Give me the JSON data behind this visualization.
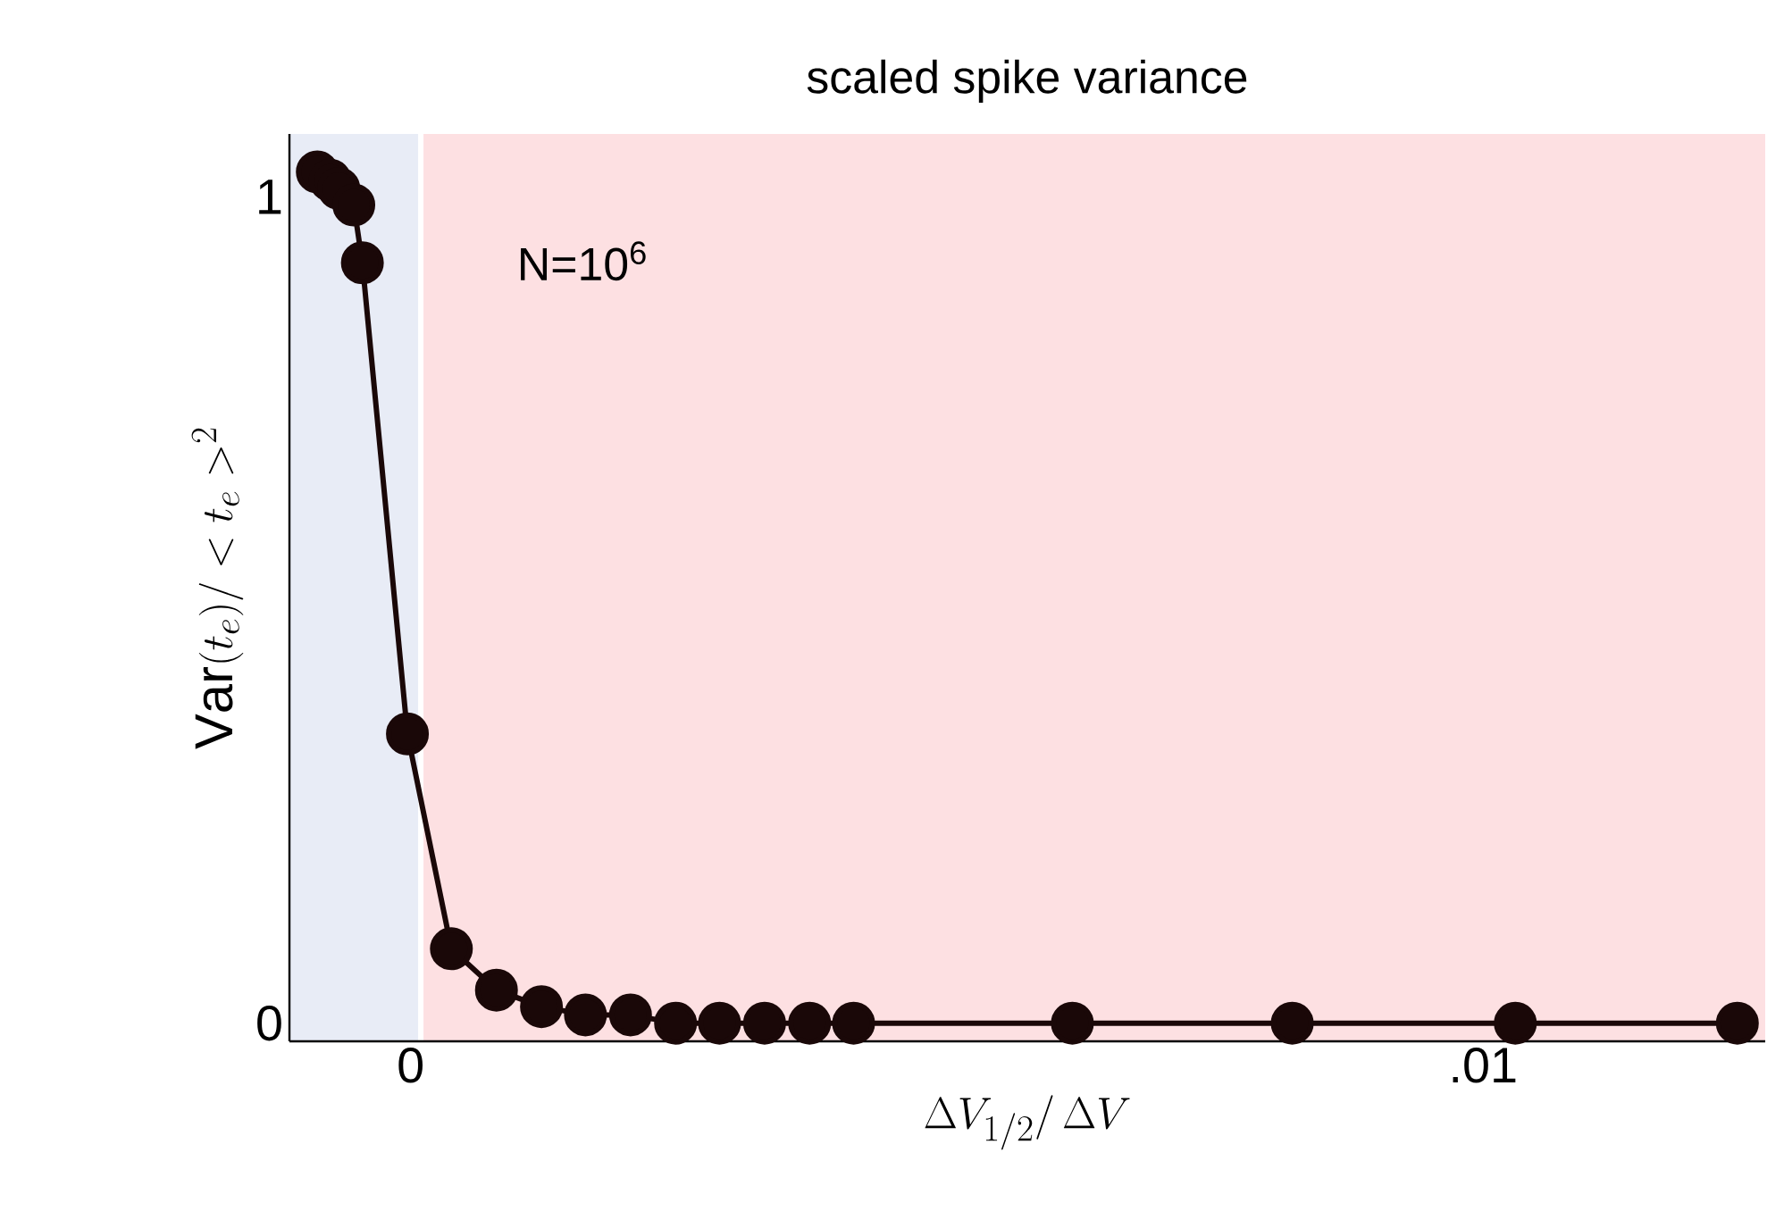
{
  "chart_data": {
    "type": "line",
    "title": "scaled spike variance",
    "xlabel": "\\Delta V_{1/2}/\\, \\Delta V",
    "ylabel": "\\mathrm{Var}(t_e)/ < t_e >^{2}",
    "annotations": [
      "N=10$^{6}$"
    ],
    "x": [
      -0.00087,
      -0.00075,
      -0.00067,
      -0.00053,
      -0.00045,
      -3e-05,
      0.00038,
      0.0008,
      0.00122,
      0.00163,
      0.00205,
      0.00247,
      0.00288,
      0.0033,
      0.00372,
      0.00413,
      0.00617,
      0.00822,
      0.0103,
      0.01237
    ],
    "values": [
      1.03,
      1.02,
      1.01,
      0.99,
      0.92,
      0.35,
      0.09,
      0.04,
      0.02,
      0.01,
      0.01,
      0.0,
      0.0,
      0.0,
      0.0,
      0.0,
      0.0,
      0.0,
      0.0,
      0.0
    ],
    "color": "#1a0808",
    "marker": "circle",
    "line_style": "solid",
    "xlim": [
      -0.00113,
      0.01263
    ],
    "ylim": [
      -0.022,
      1.076
    ],
    "xticks": [
      {
        "value": 0,
        "label": "0"
      },
      {
        "value": 0.01,
        "label": ".01"
      }
    ],
    "yticks": [
      0,
      1
    ],
    "bands": [
      {
        "axis": "x",
        "from": -0.00113,
        "to": 7e-05,
        "color": "#e8ecf6"
      },
      {
        "axis": "x",
        "from": 0.00012,
        "to": 0.01263,
        "color": "#fde0e2"
      }
    ]
  }
}
